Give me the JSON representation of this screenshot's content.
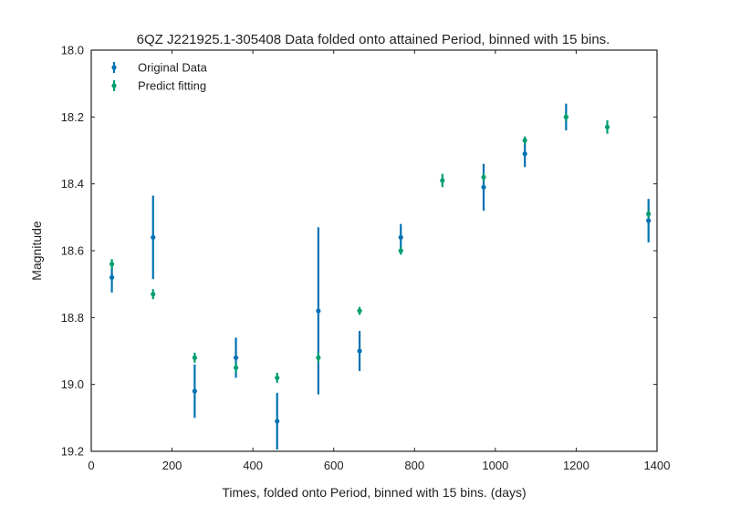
{
  "chart_data": {
    "type": "scatter",
    "title": "6QZ J221925.1-305408 Data folded onto attained Period, binned with 15 bins.",
    "xlabel": "Times, folded onto Period, binned with 15 bins. (days)",
    "ylabel": "Magnitude",
    "xlim": [
      0,
      1400
    ],
    "ylim": [
      18.0,
      19.2
    ],
    "y_inverted": true,
    "xticks": [
      0,
      200,
      400,
      600,
      800,
      1000,
      1200,
      1400
    ],
    "yticks": [
      18.0,
      18.2,
      18.4,
      18.6,
      18.8,
      19.0,
      19.2
    ],
    "grid": false,
    "legend_position": "top-left",
    "series": [
      {
        "name": "Original Data",
        "color": "#0072b2",
        "x": [
          51,
          153,
          256,
          358,
          460,
          562,
          664,
          766,
          869,
          971,
          1073,
          1175,
          1277,
          1379
        ],
        "y": [
          18.68,
          18.56,
          19.02,
          18.92,
          19.11,
          18.78,
          18.9,
          18.56,
          null,
          18.41,
          18.31,
          18.2,
          null,
          18.51
        ],
        "yerr": [
          0.045,
          0.125,
          0.08,
          0.06,
          0.085,
          0.25,
          0.06,
          0.04,
          null,
          0.07,
          0.04,
          0.04,
          null,
          0.065
        ]
      },
      {
        "name": "Predict fitting",
        "color": "#009e73",
        "x": [
          51,
          153,
          256,
          358,
          460,
          562,
          664,
          766,
          869,
          971,
          1073,
          1175,
          1277,
          1379
        ],
        "y": [
          18.64,
          18.73,
          18.92,
          18.95,
          18.98,
          18.92,
          18.78,
          18.6,
          18.39,
          18.38,
          18.27,
          18.2,
          18.23,
          18.49
        ],
        "yerr": [
          0.015,
          0.015,
          0.015,
          0.015,
          0.015,
          0.015,
          0.012,
          0.012,
          0.02,
          0.012,
          0.012,
          0.012,
          0.02,
          0.012
        ]
      }
    ]
  }
}
